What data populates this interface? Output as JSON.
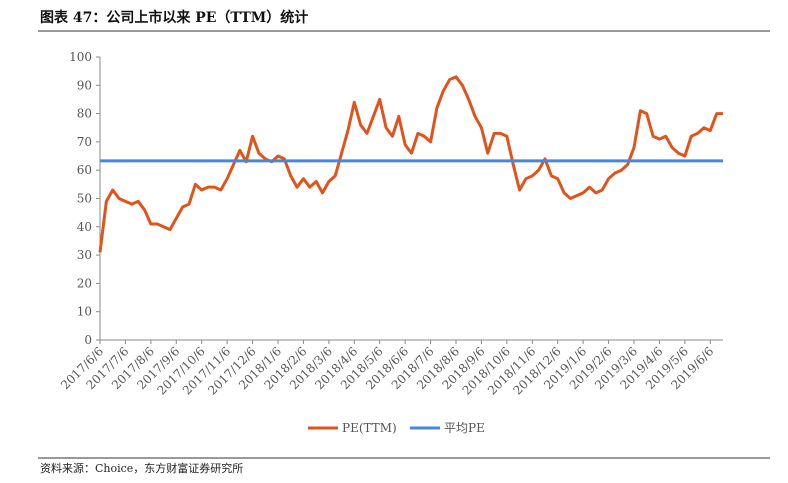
{
  "chart_data": {
    "type": "line",
    "title": "图表 47：公司上市以来 PE（TTM）统计",
    "source": "资料来源：Choice，东方财富证券研究所",
    "categories": [
      "2017/6/6",
      null,
      null,
      null,
      "2017/7/6",
      null,
      null,
      null,
      "2017/8/6",
      null,
      null,
      null,
      "2017/9/6",
      null,
      null,
      null,
      "2017/10/6",
      null,
      null,
      null,
      "2017/11/6",
      null,
      null,
      null,
      "2017/12/6",
      null,
      null,
      null,
      "2018/1/6",
      null,
      null,
      null,
      "2018/2/6",
      null,
      null,
      null,
      "2018/3/6",
      null,
      null,
      null,
      "2018/4/6",
      null,
      null,
      null,
      "2018/5/6",
      null,
      null,
      null,
      "2018/6/6",
      null,
      null,
      null,
      "2018/7/6",
      null,
      null,
      null,
      "2018/8/6",
      null,
      null,
      null,
      "2018/9/6",
      null,
      null,
      null,
      "2018/10/6",
      null,
      null,
      null,
      "2018/11/6",
      null,
      null,
      null,
      "2018/12/6",
      null,
      null,
      null,
      "2019/1/6",
      null,
      null,
      null,
      "2019/2/6",
      null,
      null,
      null,
      "2019/3/6",
      null,
      null,
      null,
      "2019/4/6",
      null,
      null,
      null,
      "2019/5/6",
      null,
      null,
      null,
      "2019/6/6",
      null,
      null
    ],
    "series": [
      {
        "name": "PE(TTM)",
        "color": "#e0541c",
        "values": [
          31,
          49,
          53,
          50,
          49,
          48,
          49,
          46,
          41,
          41,
          40,
          39,
          43,
          47,
          48,
          55,
          53,
          54,
          54,
          53,
          57,
          62,
          67,
          63,
          72,
          66,
          64,
          63,
          65,
          64,
          58,
          54,
          57,
          54,
          56,
          52,
          56,
          58,
          66,
          74,
          84,
          76,
          73,
          79,
          85,
          75,
          72,
          79,
          69,
          66,
          73,
          72,
          70,
          82,
          88,
          92,
          93,
          90,
          85,
          79,
          75,
          66,
          73,
          73,
          72,
          62,
          53,
          57,
          58,
          60,
          64,
          58,
          57,
          52,
          50,
          51,
          52,
          54,
          52,
          53,
          57,
          59,
          60,
          62,
          68,
          81,
          80,
          72,
          71,
          72,
          68,
          66,
          65,
          72,
          73,
          75,
          74,
          80,
          80
        ]
      },
      {
        "name": "平均PE",
        "color": "#4a86d6",
        "values": [
          63.3,
          63.3,
          63.3,
          63.3,
          63.3,
          63.3,
          63.3,
          63.3,
          63.3,
          63.3,
          63.3,
          63.3,
          63.3,
          63.3,
          63.3,
          63.3,
          63.3,
          63.3,
          63.3,
          63.3,
          63.3,
          63.3,
          63.3,
          63.3,
          63.3,
          63.3,
          63.3,
          63.3,
          63.3,
          63.3,
          63.3,
          63.3,
          63.3,
          63.3,
          63.3,
          63.3,
          63.3,
          63.3,
          63.3,
          63.3,
          63.3,
          63.3,
          63.3,
          63.3,
          63.3,
          63.3,
          63.3,
          63.3,
          63.3,
          63.3,
          63.3,
          63.3,
          63.3,
          63.3,
          63.3,
          63.3,
          63.3,
          63.3,
          63.3,
          63.3,
          63.3,
          63.3,
          63.3,
          63.3,
          63.3,
          63.3,
          63.3,
          63.3,
          63.3,
          63.3,
          63.3,
          63.3,
          63.3,
          63.3,
          63.3,
          63.3,
          63.3,
          63.3,
          63.3,
          63.3,
          63.3,
          63.3,
          63.3,
          63.3,
          63.3,
          63.3,
          63.3,
          63.3,
          63.3,
          63.3,
          63.3,
          63.3,
          63.3,
          63.3,
          63.3,
          63.3,
          63.3,
          63.3,
          63.3
        ]
      }
    ],
    "ylim": [
      0,
      100
    ],
    "yticks": [
      0,
      10,
      20,
      30,
      40,
      50,
      60,
      70,
      80,
      90,
      100
    ],
    "legend": "bottom",
    "grid": false
  }
}
